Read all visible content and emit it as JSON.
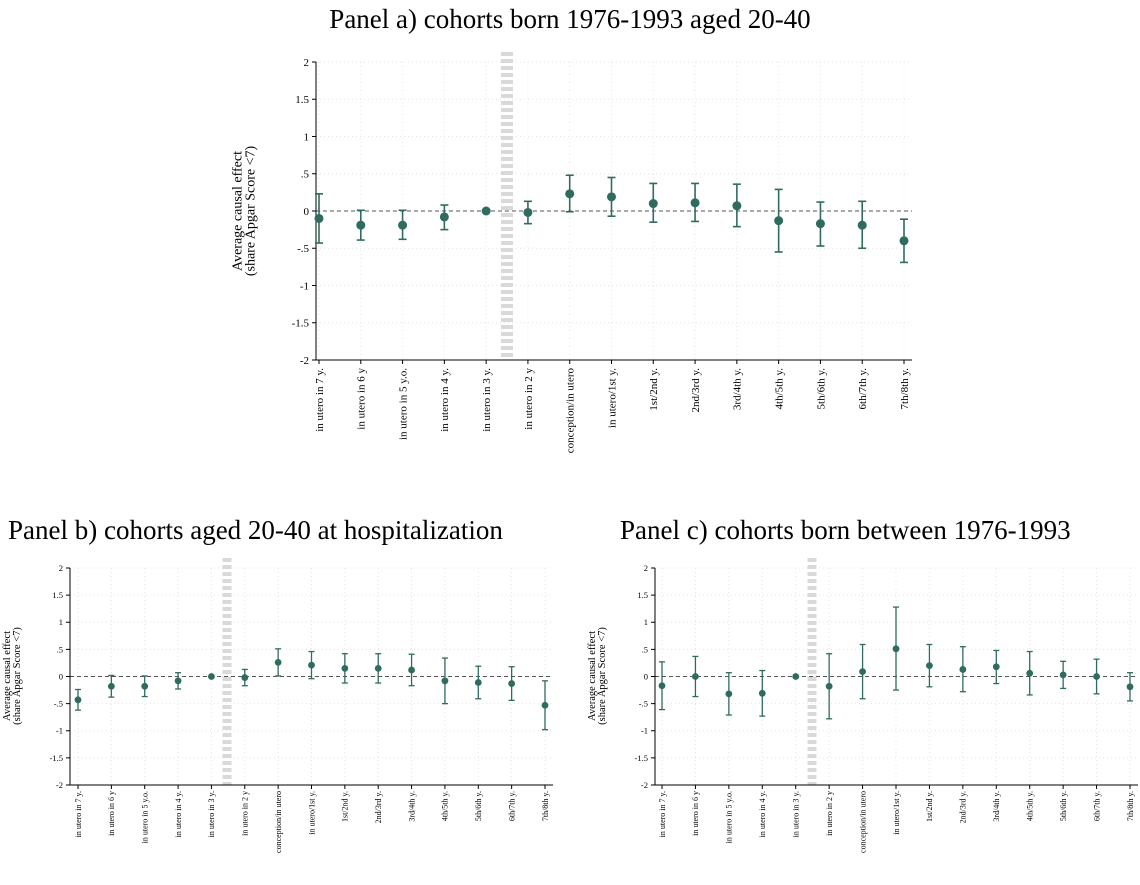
{
  "chart_data": [
    {
      "type": "scatter",
      "title": "Panel a) cohorts born 1976-1993 aged 20-40",
      "ylabel": "Average causal effect\n(share Apgar Score <7)",
      "xlabel": "",
      "ylim": [
        -2,
        2
      ],
      "yticks": [
        2,
        1.5,
        1,
        0.5,
        0,
        -0.5,
        -1,
        -1.5,
        -2
      ],
      "ytick_labels": [
        "2",
        "1.5",
        "1",
        ".5",
        "0",
        "-.5",
        "-1",
        "-1.5",
        "-2"
      ],
      "categories": [
        "in utero in 7 y.",
        "in utero in 6 y",
        "in utero in 5 y.o.",
        "in utero in 4 y.",
        "in utero in 3 y.",
        "in utero in 2 y",
        "conception/in utero",
        "in utero/1st y.",
        "1st/2nd y.",
        "2nd/3rd y.",
        "3rd/4th y.",
        "4th/5th y.",
        "5th/6th y.",
        "6th/7th y.",
        "7th/8th y."
      ],
      "series": [
        {
          "estimate": [
            -0.1,
            -0.19,
            -0.19,
            -0.08,
            0.0,
            -0.02,
            0.23,
            0.19,
            0.1,
            0.11,
            0.07,
            -0.13,
            -0.17,
            -0.19,
            -0.4
          ],
          "ci_low": [
            -0.43,
            -0.39,
            -0.38,
            -0.25,
            0.0,
            -0.17,
            -0.01,
            -0.07,
            -0.15,
            -0.14,
            -0.21,
            -0.55,
            -0.47,
            -0.5,
            -0.69
          ],
          "ci_high": [
            0.23,
            0.01,
            0.01,
            0.08,
            0.0,
            0.13,
            0.48,
            0.45,
            0.37,
            0.37,
            0.36,
            0.29,
            0.12,
            0.13,
            -0.11
          ]
        }
      ],
      "reference_line": 0,
      "event_marker_after": "in utero in 3 y.",
      "grid": true,
      "color": "#2f6b5f"
    },
    {
      "type": "scatter",
      "title": "Panel b) cohorts aged 20-40 at hospitalization",
      "ylabel": "Average causal effect\n(share Apgar Score <7)",
      "xlabel": "",
      "ylim": [
        -2,
        2
      ],
      "yticks": [
        2,
        1.5,
        1,
        0.5,
        0,
        -0.5,
        -1,
        -1.5,
        -2
      ],
      "ytick_labels": [
        "2",
        "1.5",
        "1",
        ".5",
        "0",
        "-.5",
        "-1",
        "-1.5",
        "-2"
      ],
      "categories": [
        "in utero in 7 y.",
        "in utero in 6 y",
        "in utero in 5 y.o.",
        "in utero in 4 y.",
        "in utero in 3 y.",
        "in utero in 2 y",
        "conception/in utero",
        "in utero/1st y.",
        "1st/2nd y.",
        "2nd/3rd y.",
        "3rd/4th y.",
        "4th/5th y.",
        "5th/6th y.",
        "6th/7th y.",
        "7th/8th y."
      ],
      "series": [
        {
          "estimate": [
            -0.43,
            -0.18,
            -0.18,
            -0.08,
            0.0,
            -0.02,
            0.26,
            0.21,
            0.15,
            0.15,
            0.12,
            -0.08,
            -0.11,
            -0.13,
            -0.53
          ],
          "ci_low": [
            -0.62,
            -0.38,
            -0.37,
            -0.23,
            0.0,
            -0.17,
            0.01,
            -0.04,
            -0.12,
            -0.12,
            -0.17,
            -0.5,
            -0.41,
            -0.44,
            -0.98
          ],
          "ci_high": [
            -0.24,
            0.02,
            0.01,
            0.07,
            0.0,
            0.13,
            0.51,
            0.46,
            0.42,
            0.42,
            0.41,
            0.34,
            0.19,
            0.18,
            -0.08
          ]
        }
      ],
      "reference_line": 0,
      "event_marker_after": "in utero in 3 y.",
      "grid": true,
      "color": "#2f6b5f"
    },
    {
      "type": "scatter",
      "title": "Panel c) cohorts born between 1976-1993",
      "ylabel": "Average causal effect\n(share Apgar Score <7)",
      "xlabel": "",
      "ylim": [
        -2,
        2
      ],
      "yticks": [
        2,
        1.5,
        1,
        0.5,
        0,
        -0.5,
        -1,
        -1.5,
        -2
      ],
      "ytick_labels": [
        "2",
        "1.5",
        "1",
        ".5",
        "0",
        "-.5",
        "-1",
        "-1.5",
        "-2"
      ],
      "categories": [
        "in utero in 7 y.",
        "in utero in 6 y",
        "in utero in 5 y.o.",
        "in utero in 4 y.",
        "in utero in 3 y.",
        "in utero in 2 y",
        "conception/in utero",
        "in utero/1st y.",
        "1st/2nd y.",
        "2nd/3rd y.",
        "3rd/4th y.",
        "4th/5th y.",
        "5th/6th y.",
        "6th/7th y.",
        "7th/8th y."
      ],
      "series": [
        {
          "estimate": [
            -0.17,
            0.0,
            -0.32,
            -0.31,
            0.0,
            -0.18,
            0.09,
            0.51,
            0.2,
            0.13,
            0.18,
            0.06,
            0.03,
            0.0,
            -0.19
          ],
          "ci_low": [
            -0.61,
            -0.37,
            -0.71,
            -0.73,
            0.0,
            -0.78,
            -0.41,
            -0.25,
            -0.19,
            -0.28,
            -0.13,
            -0.34,
            -0.22,
            -0.32,
            -0.45
          ],
          "ci_high": [
            0.27,
            0.37,
            0.07,
            0.11,
            0.0,
            0.42,
            0.59,
            1.28,
            0.59,
            0.55,
            0.48,
            0.46,
            0.28,
            0.32,
            0.07
          ]
        }
      ],
      "reference_line": 0,
      "event_marker_after": "in utero in 3 y.",
      "grid": true,
      "color": "#2f6b5f"
    }
  ]
}
